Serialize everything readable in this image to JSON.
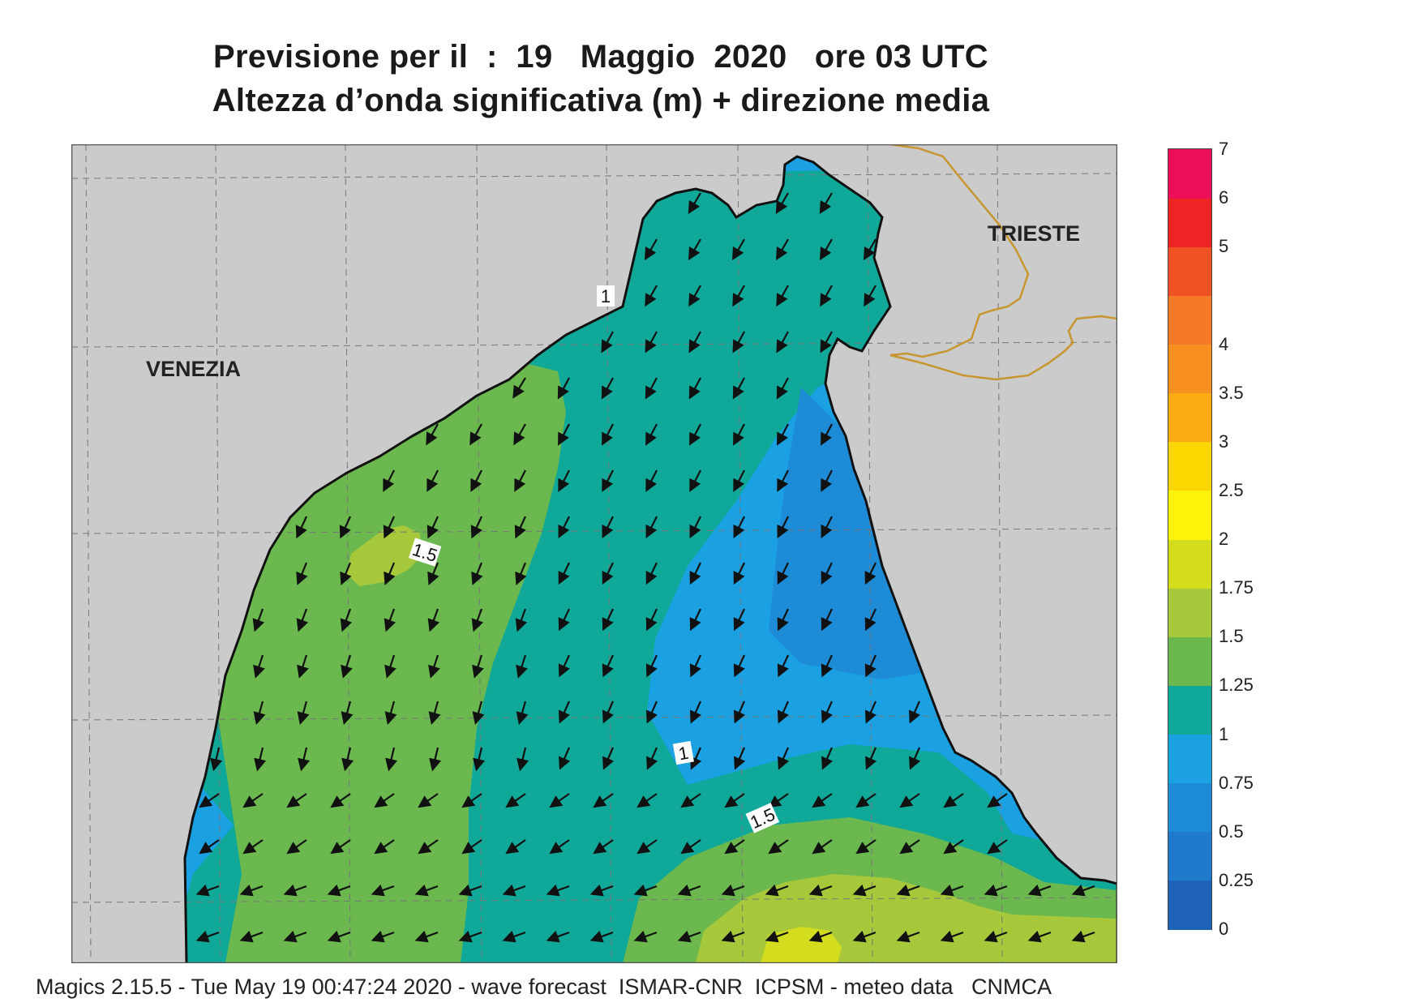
{
  "title": {
    "line1": "Previsione per il  :  19   Maggio  2020   ore 03 UTC",
    "line2": "Altezza d’onda significativa (m) + direzione media"
  },
  "cities": {
    "venezia": "VENEZIA",
    "trieste": "TRIESTE"
  },
  "contour_labels": [
    "1",
    "1.5",
    "1",
    "1.5"
  ],
  "colorbar": {
    "levels": [
      "0",
      "0.25",
      "0.5",
      "0.75",
      "1",
      "1.25",
      "1.5",
      "1.75",
      "2",
      "2.5",
      "3",
      "3.5",
      "4",
      "4.5",
      "5",
      "6",
      "7"
    ],
    "tick_labels": [
      "0",
      "0.25",
      "0.5",
      "0.75",
      "1",
      "1.25",
      "1.5",
      "1.75",
      "2",
      "2.5",
      "3",
      "3.5",
      "4",
      "5",
      "6",
      "7"
    ],
    "colors": [
      "#1f63b8",
      "#1f7acc",
      "#1d8bd6",
      "#1ba0e2",
      "#10a899",
      "#6bb84e",
      "#a8c83b",
      "#d4dc1e",
      "#fcf20a",
      "#fcd600",
      "#fbaa12",
      "#f79020",
      "#f47a28",
      "#f15224",
      "#ee2424",
      "#ec0f58"
    ]
  },
  "colors": {
    "land": "#cbcbcb",
    "coast": "#111111",
    "border": "#c8962f",
    "grid": "#777777"
  },
  "footer": "Magics 2.15.5 - Tue May 19 00:47:24 2020 - wave forecast  ISMAR-CNR  ICPSM - meteo data   CNMCA"
}
